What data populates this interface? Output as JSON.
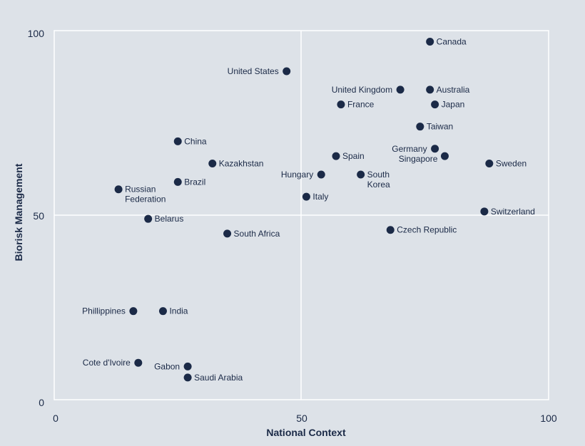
{
  "chart_data": {
    "type": "scatter",
    "xlabel": "National Context",
    "ylabel": "Biorisk Management",
    "xlim": [
      0,
      100
    ],
    "ylim": [
      0,
      100
    ],
    "x_ticks": [
      "0",
      "50",
      "100"
    ],
    "y_ticks": [
      "0",
      "50",
      "100"
    ],
    "grid": "midlines at 50",
    "colors": {
      "background": "#dde2e8",
      "point": "#1b2a47",
      "gridline": "#ffffff"
    },
    "points": [
      {
        "label": "Canada",
        "x": 76,
        "y": 97,
        "label_pos": "right"
      },
      {
        "label": "United States",
        "x": 47,
        "y": 89,
        "label_pos": "left"
      },
      {
        "label": "United Kingdom",
        "x": 70,
        "y": 84,
        "label_pos": "left"
      },
      {
        "label": "Australia",
        "x": 76,
        "y": 84,
        "label_pos": "right"
      },
      {
        "label": "France",
        "x": 58,
        "y": 80,
        "label_pos": "right"
      },
      {
        "label": "Japan",
        "x": 77,
        "y": 80,
        "label_pos": "right"
      },
      {
        "label": "Taiwan",
        "x": 74,
        "y": 74,
        "label_pos": "right"
      },
      {
        "label": "China",
        "x": 25,
        "y": 70,
        "label_pos": "right"
      },
      {
        "label": "Germany",
        "x": 77,
        "y": 68,
        "label_pos": "left"
      },
      {
        "label": "Singapore",
        "x": 79,
        "y": 66,
        "label_pos": "left-below"
      },
      {
        "label": "Spain",
        "x": 57,
        "y": 66,
        "label_pos": "right"
      },
      {
        "label": "Kazakhstan",
        "x": 32,
        "y": 64,
        "label_pos": "right"
      },
      {
        "label": "Sweden",
        "x": 88,
        "y": 64,
        "label_pos": "right"
      },
      {
        "label": "Hungary",
        "x": 54,
        "y": 61,
        "label_pos": "left"
      },
      {
        "label": "South Korea",
        "x": 62,
        "y": 61,
        "label_pos": "right-wrap"
      },
      {
        "label": "Brazil",
        "x": 25,
        "y": 59,
        "label_pos": "right"
      },
      {
        "label": "Russian Federation",
        "x": 13,
        "y": 57,
        "label_pos": "right-wrap"
      },
      {
        "label": "Italy",
        "x": 51,
        "y": 55,
        "label_pos": "right"
      },
      {
        "label": "Switzerland",
        "x": 87,
        "y": 51,
        "label_pos": "right"
      },
      {
        "label": "Belarus",
        "x": 19,
        "y": 49,
        "label_pos": "right"
      },
      {
        "label": "Czech Republic",
        "x": 68,
        "y": 46,
        "label_pos": "right"
      },
      {
        "label": "South Africa",
        "x": 35,
        "y": 45,
        "label_pos": "right"
      },
      {
        "label": "Phillippines",
        "x": 16,
        "y": 24,
        "label_pos": "left"
      },
      {
        "label": "India",
        "x": 22,
        "y": 24,
        "label_pos": "right"
      },
      {
        "label": "Cote d'Ivoire",
        "x": 17,
        "y": 10,
        "label_pos": "left"
      },
      {
        "label": "Gabon",
        "x": 27,
        "y": 9,
        "label_pos": "left"
      },
      {
        "label": "Saudi Arabia",
        "x": 27,
        "y": 6,
        "label_pos": "right"
      }
    ]
  }
}
